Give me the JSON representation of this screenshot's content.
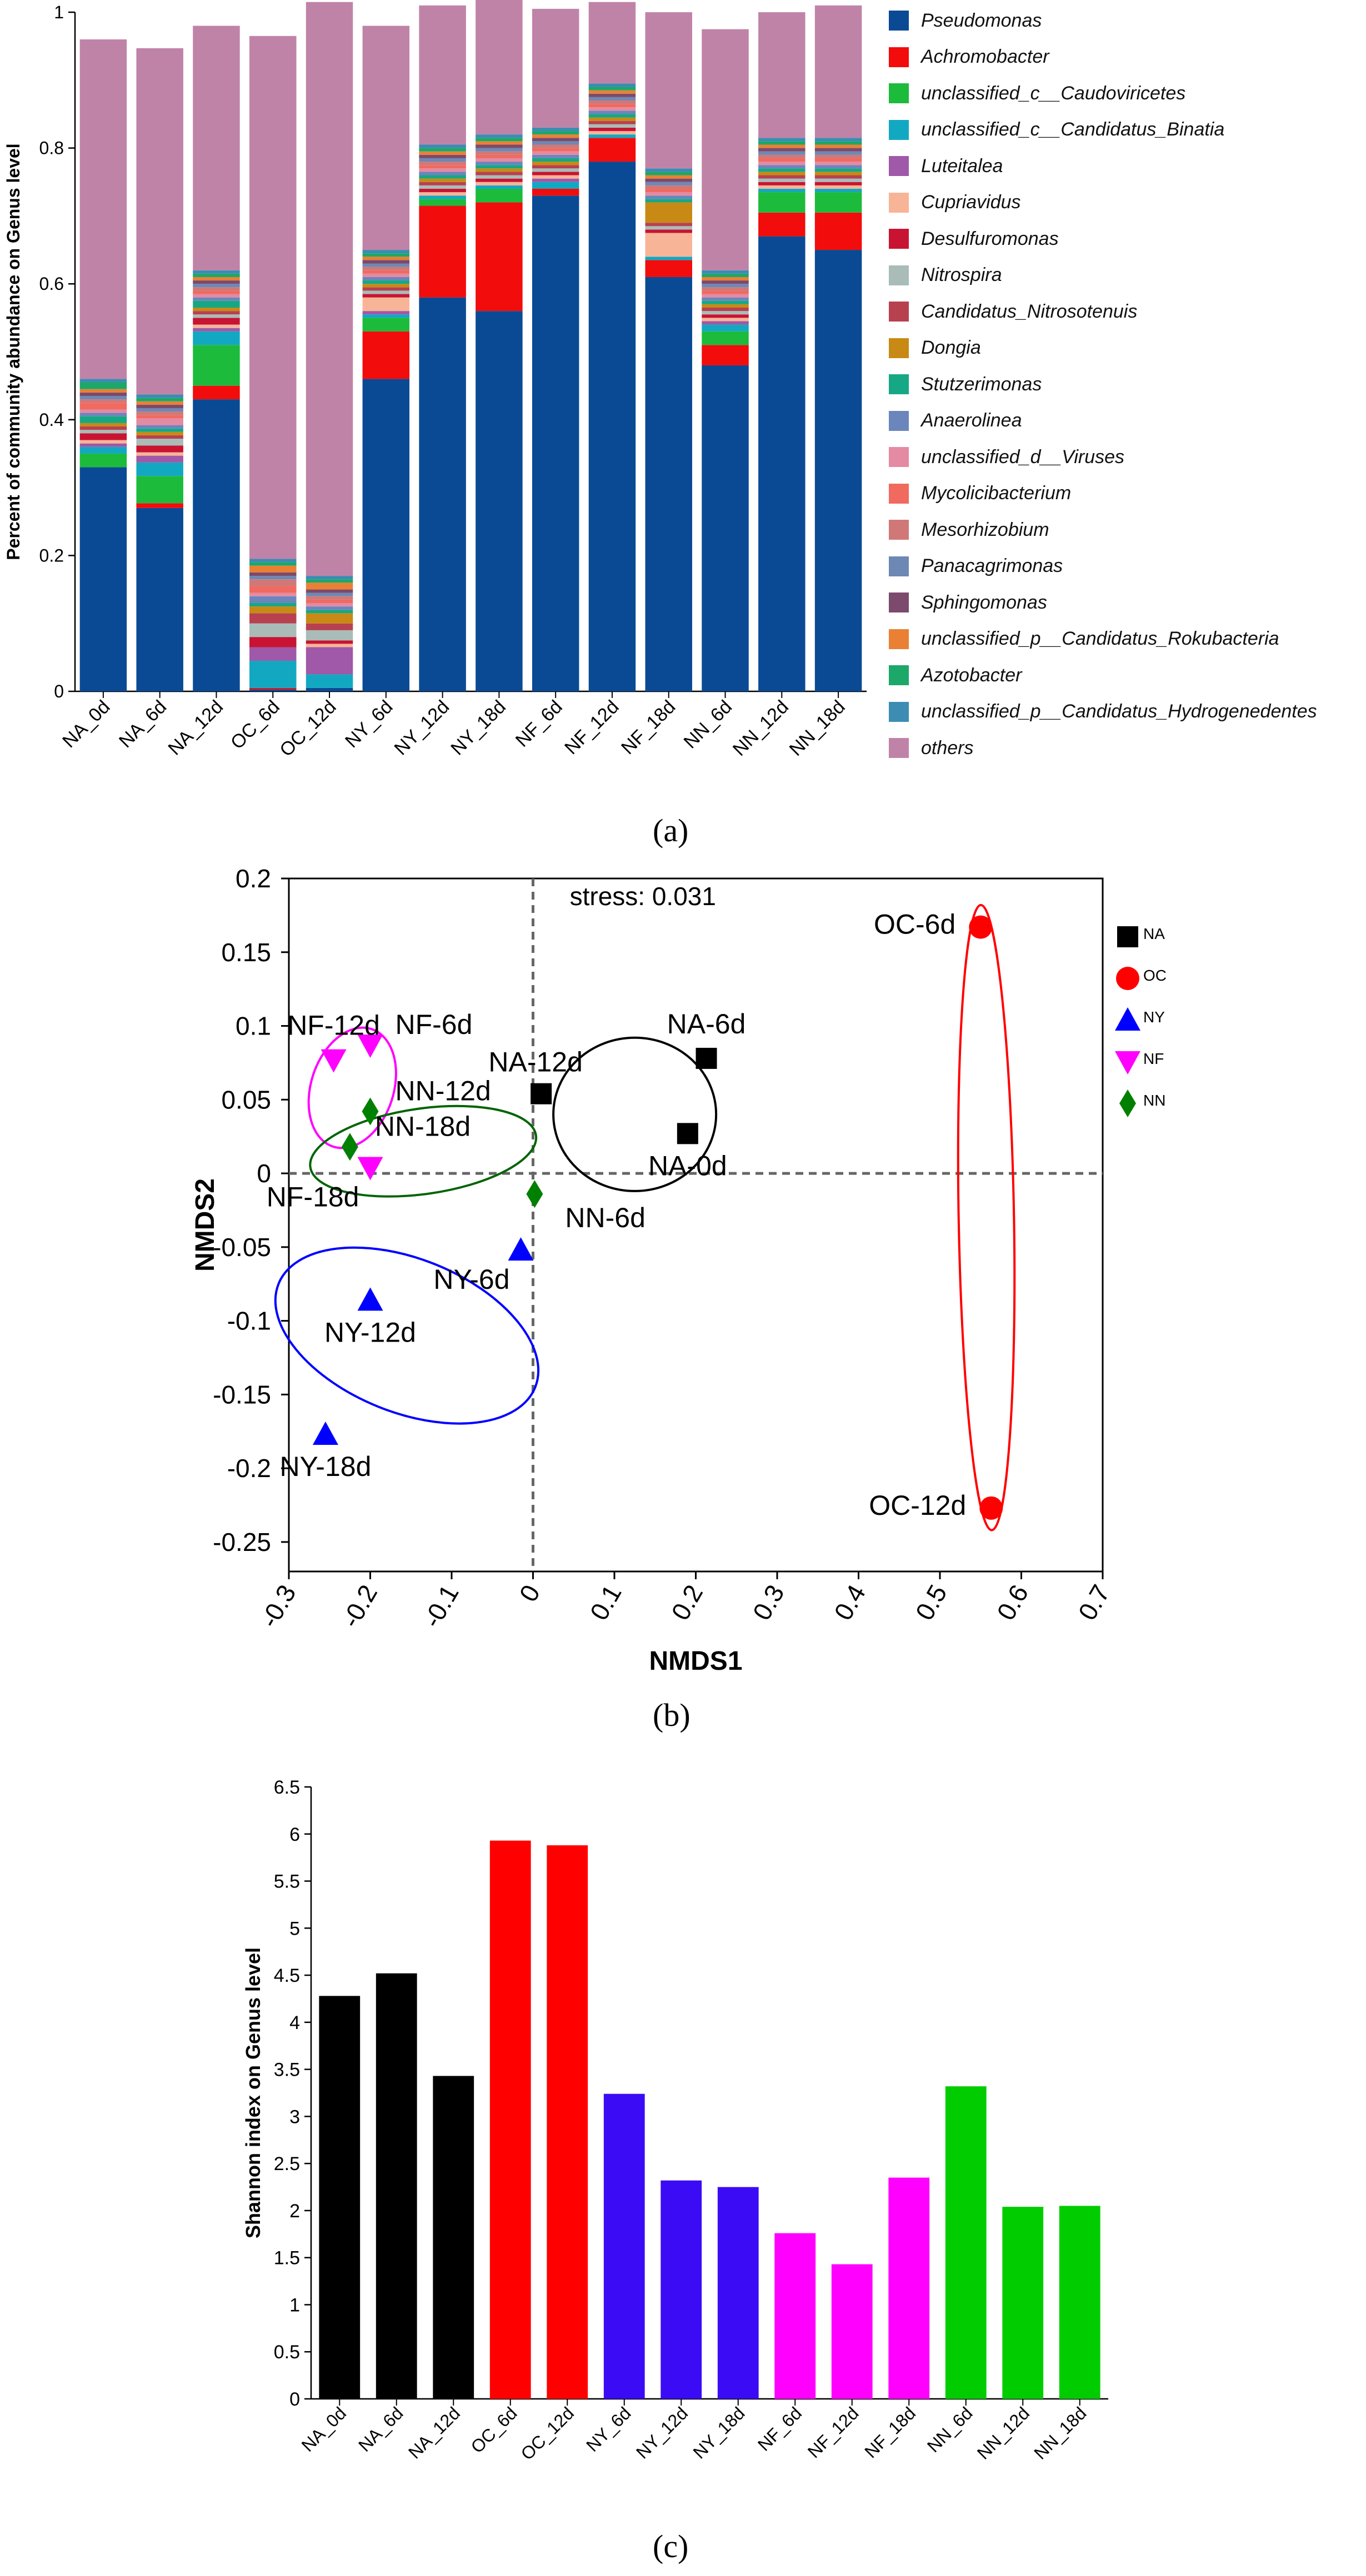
{
  "captions": {
    "a": "(a)",
    "b": "(b)",
    "c": "(c)"
  },
  "chart_data": [
    {
      "type": "bar",
      "stacked": true,
      "ylabel": "Percent of community abundance on Genus level",
      "ylim": [
        0,
        1
      ],
      "yticks": [
        "0",
        "0.2",
        "0.4",
        "0.6",
        "0.8",
        "1"
      ],
      "categories": [
        "NA_0d",
        "NA_6d",
        "NA_12d",
        "OC_6d",
        "OC_12d",
        "NY_6d",
        "NY_12d",
        "NY_18d",
        "NF_6d",
        "NF_12d",
        "NF_18d",
        "NN_6d",
        "NN_12d",
        "NN_18d"
      ],
      "series": [
        {
          "name": "Pseudomonas",
          "color": "#0a4a94",
          "values": [
            0.33,
            0.27,
            0.43,
            0.003,
            0.005,
            0.46,
            0.58,
            0.56,
            0.73,
            0.78,
            0.61,
            0.48,
            0.67,
            0.65
          ]
        },
        {
          "name": "Achromobacter",
          "color": "#f20c0c",
          "values": [
            0.0,
            0.007,
            0.02,
            0.002,
            0.0,
            0.07,
            0.135,
            0.16,
            0.01,
            0.035,
            0.025,
            0.03,
            0.035,
            0.055
          ]
        },
        {
          "name": "unclassified_c__Caudoviricetes",
          "color": "#1cbb3c",
          "values": [
            0.02,
            0.04,
            0.06,
            0.0,
            0.0,
            0.02,
            0.01,
            0.02,
            0.0,
            0.0,
            0.0,
            0.02,
            0.03,
            0.03
          ]
        },
        {
          "name": "unclassified_c__Candidatus_Binatia",
          "color": "#13a8c2",
          "values": [
            0.01,
            0.02,
            0.02,
            0.04,
            0.02,
            0.005,
            0.005,
            0.005,
            0.01,
            0.005,
            0.005,
            0.01,
            0.005,
            0.005
          ]
        },
        {
          "name": "Luteitalea",
          "color": "#a058a8",
          "values": [
            0.005,
            0.01,
            0.005,
            0.02,
            0.04,
            0.005,
            0.0,
            0.0,
            0.005,
            0.0,
            0.0,
            0.005,
            0.0,
            0.0
          ]
        },
        {
          "name": "Cupriavidus",
          "color": "#f8b497",
          "values": [
            0.005,
            0.005,
            0.005,
            0.0,
            0.005,
            0.02,
            0.005,
            0.005,
            0.005,
            0.005,
            0.035,
            0.005,
            0.005,
            0.005
          ]
        },
        {
          "name": "Desulfuromonas",
          "color": "#c81432",
          "values": [
            0.01,
            0.01,
            0.01,
            0.015,
            0.005,
            0.005,
            0.005,
            0.005,
            0.005,
            0.005,
            0.005,
            0.005,
            0.005,
            0.005
          ]
        },
        {
          "name": "Nitrospira",
          "color": "#a9bcb7",
          "values": [
            0.005,
            0.01,
            0.005,
            0.02,
            0.015,
            0.005,
            0.005,
            0.005,
            0.005,
            0.005,
            0.005,
            0.005,
            0.005,
            0.005
          ]
        },
        {
          "name": "Candidatus_Nitrosotenuis",
          "color": "#b84150",
          "values": [
            0.005,
            0.005,
            0.005,
            0.015,
            0.01,
            0.005,
            0.005,
            0.005,
            0.005,
            0.005,
            0.005,
            0.005,
            0.005,
            0.005
          ]
        },
        {
          "name": "Dongia",
          "color": "#c88a14",
          "values": [
            0.005,
            0.005,
            0.005,
            0.01,
            0.015,
            0.005,
            0.005,
            0.005,
            0.005,
            0.005,
            0.03,
            0.005,
            0.005,
            0.005
          ]
        },
        {
          "name": "Stutzerimonas",
          "color": "#16a884",
          "values": [
            0.01,
            0.005,
            0.01,
            0.005,
            0.005,
            0.005,
            0.005,
            0.005,
            0.005,
            0.005,
            0.005,
            0.005,
            0.005,
            0.005
          ]
        },
        {
          "name": "Anaerolinea",
          "color": "#6b86bc",
          "values": [
            0.005,
            0.005,
            0.005,
            0.01,
            0.005,
            0.005,
            0.005,
            0.005,
            0.005,
            0.005,
            0.005,
            0.005,
            0.005,
            0.005
          ]
        },
        {
          "name": "unclassified_d__Viruses",
          "color": "#e48aa2",
          "values": [
            0.005,
            0.01,
            0.005,
            0.005,
            0.005,
            0.005,
            0.005,
            0.005,
            0.005,
            0.005,
            0.005,
            0.005,
            0.005,
            0.005
          ]
        },
        {
          "name": "Mycolicibacterium",
          "color": "#f06a60",
          "values": [
            0.01,
            0.005,
            0.005,
            0.01,
            0.005,
            0.005,
            0.005,
            0.005,
            0.005,
            0.005,
            0.005,
            0.005,
            0.005,
            0.005
          ]
        },
        {
          "name": "Mesorhizobium",
          "color": "#d07878",
          "values": [
            0.005,
            0.005,
            0.005,
            0.01,
            0.005,
            0.005,
            0.005,
            0.005,
            0.005,
            0.005,
            0.005,
            0.005,
            0.005,
            0.005
          ]
        },
        {
          "name": "Panacagrimonas",
          "color": "#6e88b4",
          "values": [
            0.005,
            0.005,
            0.005,
            0.005,
            0.005,
            0.005,
            0.005,
            0.005,
            0.005,
            0.005,
            0.005,
            0.005,
            0.005,
            0.005
          ]
        },
        {
          "name": "Sphingomonas",
          "color": "#7c4a6c",
          "values": [
            0.005,
            0.005,
            0.005,
            0.005,
            0.005,
            0.005,
            0.005,
            0.005,
            0.005,
            0.005,
            0.005,
            0.005,
            0.005,
            0.005
          ]
        },
        {
          "name": "unclassified_p__Candidatus_Rokubacteria",
          "color": "#ea8034",
          "values": [
            0.005,
            0.005,
            0.005,
            0.01,
            0.01,
            0.005,
            0.005,
            0.005,
            0.005,
            0.005,
            0.005,
            0.005,
            0.005,
            0.005
          ]
        },
        {
          "name": "Azotobacter",
          "color": "#1ca868",
          "values": [
            0.01,
            0.005,
            0.005,
            0.005,
            0.005,
            0.005,
            0.005,
            0.005,
            0.005,
            0.005,
            0.005,
            0.005,
            0.005,
            0.005
          ]
        },
        {
          "name": "unclassified_p__Candidatus_Hydrogenedentes",
          "color": "#3c8cb4",
          "values": [
            0.005,
            0.005,
            0.005,
            0.005,
            0.005,
            0.005,
            0.005,
            0.005,
            0.005,
            0.005,
            0.005,
            0.005,
            0.005,
            0.005
          ]
        },
        {
          "name": "others",
          "color": "#c083a8",
          "values": [
            0.5,
            0.51,
            0.36,
            0.77,
            0.845,
            0.33,
            0.205,
            0.225,
            0.175,
            0.12,
            0.23,
            0.355,
            0.185,
            0.195
          ]
        }
      ]
    },
    {
      "type": "scatter",
      "annotation": "stress: 0.031",
      "xlabel": "NMDS1",
      "ylabel": "NMDS2",
      "xlim": [
        -0.3,
        0.7
      ],
      "ylim": [
        -0.27,
        0.2
      ],
      "xticks": [
        -0.3,
        -0.2,
        -0.1,
        0,
        0.1,
        0.2,
        0.3,
        0.4,
        0.5,
        0.6,
        0.7
      ],
      "yticks": [
        0.2,
        0.15,
        0.1,
        0.05,
        0,
        -0.05,
        -0.1,
        -0.15,
        -0.2,
        -0.25
      ],
      "xtick_labels": [
        "-0.3",
        "-0.2",
        "-0.1",
        "0",
        "0.1",
        "0.2",
        "0.3",
        "0.4",
        "0.5",
        "0.6",
        "0.7"
      ],
      "ytick_labels": [
        "0.2",
        "0.15",
        "0.1",
        "0.05",
        "0",
        "-0.05",
        "-0.1",
        "-0.15",
        "-0.2",
        "-0.25"
      ],
      "legend_position": "right",
      "groups": [
        {
          "name": "NA",
          "marker": "square",
          "color": "#000000",
          "points": [
            {
              "label": "NA-0d",
              "x": 0.19,
              "y": 0.027,
              "label_anchor": "below"
            },
            {
              "label": "NA-6d",
              "x": 0.213,
              "y": 0.078,
              "label_anchor": "above"
            },
            {
              "label": "NA-12d",
              "x": 0.01,
              "y": 0.054,
              "label_anchor": "above-left"
            }
          ]
        },
        {
          "name": "OC",
          "marker": "circle",
          "color": "#ff0000",
          "points": [
            {
              "label": "OC-6d",
              "x": 0.55,
              "y": 0.167,
              "label_anchor": "left"
            },
            {
              "label": "OC-12d",
              "x": 0.563,
              "y": -0.227,
              "label_anchor": "left"
            }
          ]
        },
        {
          "name": "NY",
          "marker": "triangle-up",
          "color": "#0000ff",
          "points": [
            {
              "label": "NY-6d",
              "x": -0.015,
              "y": -0.052,
              "label_anchor": "below-left"
            },
            {
              "label": "NY-12d",
              "x": -0.2,
              "y": -0.086,
              "label_anchor": "below"
            },
            {
              "label": "NY-18d",
              "x": -0.255,
              "y": -0.177,
              "label_anchor": "below"
            }
          ]
        },
        {
          "name": "NF",
          "marker": "triangle-down",
          "color": "#ff00ff",
          "points": [
            {
              "label": "NF-6d",
              "x": -0.2,
              "y": 0.087,
              "label_anchor": "right"
            },
            {
              "label": "NF-12d",
              "x": -0.245,
              "y": 0.077,
              "label_anchor": "above"
            },
            {
              "label": "NF-18d",
              "x": -0.2,
              "y": 0.004,
              "label_anchor": "below-left"
            }
          ]
        },
        {
          "name": "NN",
          "marker": "diamond",
          "color": "#008000",
          "points": [
            {
              "label": "NN-6d",
              "x": 0.002,
              "y": -0.014,
              "label_anchor": "below-right"
            },
            {
              "label": "NN-12d",
              "x": -0.2,
              "y": 0.042,
              "label_anchor": "right"
            },
            {
              "label": "NN-18d",
              "x": -0.225,
              "y": 0.018,
              "label_anchor": "right"
            }
          ]
        }
      ],
      "ellipses": [
        {
          "group": "NA",
          "color": "#000000",
          "cx": 0.125,
          "cy": 0.04,
          "rx": 0.1,
          "ry": 0.052,
          "angle": 0
        },
        {
          "group": "OC",
          "color": "#ff0000",
          "cx": 0.557,
          "cy": -0.03,
          "rx": 0.034,
          "ry": 0.212,
          "angle": -1
        },
        {
          "group": "NY",
          "color": "#0000ff",
          "cx": -0.155,
          "cy": -0.11,
          "rx": 0.17,
          "ry": 0.052,
          "angle": 22
        },
        {
          "group": "NF",
          "color": "#ff00ff",
          "cx": -0.222,
          "cy": 0.058,
          "rx": 0.076,
          "ry": 0.028,
          "angle": -72
        },
        {
          "group": "NN",
          "color": "#006400",
          "cx": -0.135,
          "cy": 0.015,
          "rx": 0.14,
          "ry": 0.029,
          "angle": -8
        }
      ]
    },
    {
      "type": "bar",
      "ylabel": "Shannon index on Genus level",
      "ylim": [
        0,
        6.5
      ],
      "yticks": [
        "0",
        "0.5",
        "1",
        "1.5",
        "2",
        "2.5",
        "3",
        "3.5",
        "4",
        "4.5",
        "5",
        "5.5",
        "6",
        "6.5"
      ],
      "categories": [
        "NA_0d",
        "NA_6d",
        "NA_12d",
        "OC_6d",
        "OC_12d",
        "NY_6d",
        "NY_12d",
        "NY_18d",
        "NF_6d",
        "NF_12d",
        "NF_18d",
        "NN_6d",
        "NN_12d",
        "NN_18d"
      ],
      "values": [
        4.28,
        4.52,
        3.43,
        5.93,
        5.88,
        3.24,
        2.32,
        2.25,
        1.76,
        1.43,
        2.35,
        3.32,
        2.04,
        2.05
      ],
      "colors": [
        "#000000",
        "#000000",
        "#000000",
        "#ff0000",
        "#ff0000",
        "#3b0bf5",
        "#3b0bf5",
        "#3b0bf5",
        "#ff00ff",
        "#ff00ff",
        "#ff00ff",
        "#00cc00",
        "#00cc00",
        "#00cc00"
      ]
    }
  ]
}
